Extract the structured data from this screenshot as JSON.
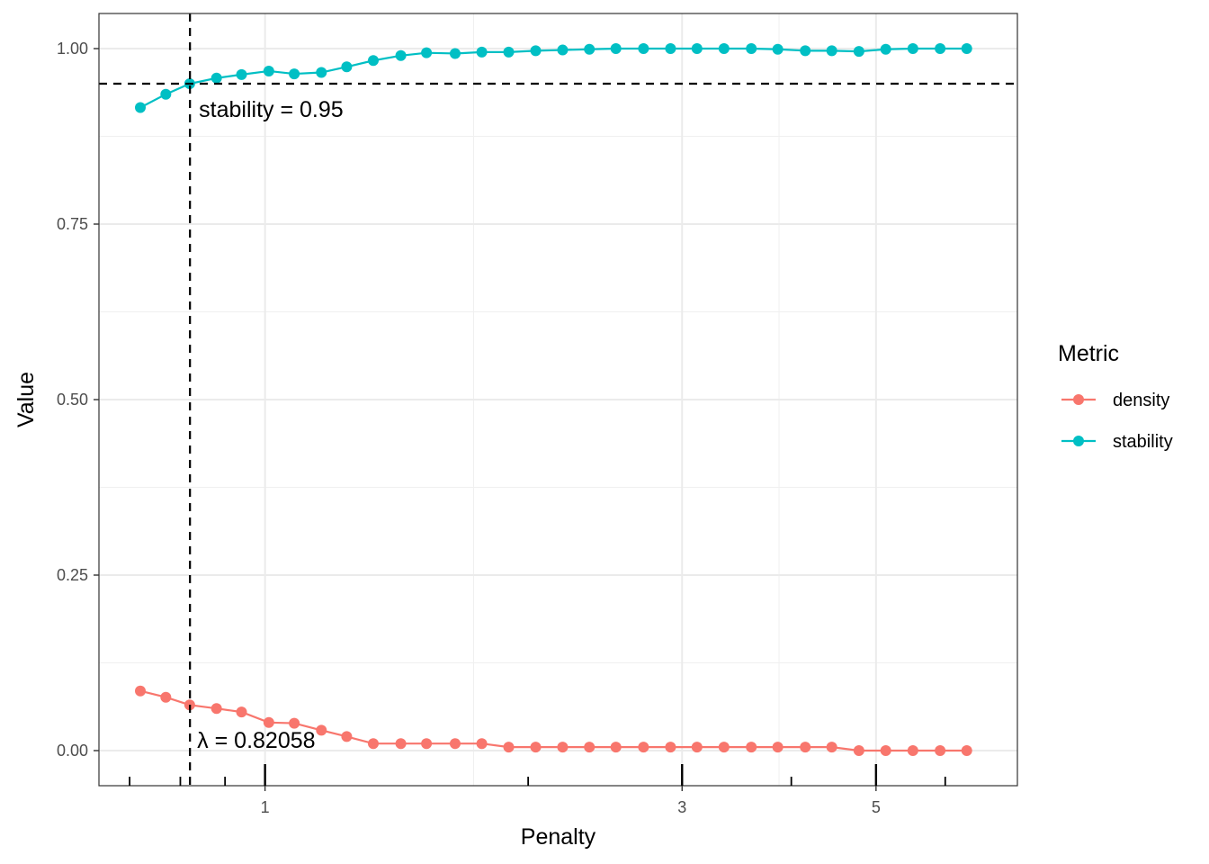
{
  "chart_data": {
    "type": "line",
    "title": "",
    "xlabel": "Penalty",
    "ylabel": "Value",
    "x_scale": "log",
    "xlim": [
      0.72,
      6.6
    ],
    "ylim": [
      -0.05,
      1.05
    ],
    "x_ticks": [
      {
        "value": 1,
        "label": "1"
      },
      {
        "value": 3,
        "label": "3"
      },
      {
        "value": 5,
        "label": "5"
      }
    ],
    "y_ticks": [
      {
        "value": 0.0,
        "label": "0.00"
      },
      {
        "value": 0.25,
        "label": "0.25"
      },
      {
        "value": 0.5,
        "label": "0.50"
      },
      {
        "value": 0.75,
        "label": "0.75"
      },
      {
        "value": 1.0,
        "label": "1.00"
      }
    ],
    "rug_major": [
      1,
      3,
      5
    ],
    "rug_minor": [
      0.7,
      0.8,
      0.9,
      2,
      4,
      6
    ],
    "grid": true,
    "legend": {
      "title": "Metric",
      "position": "right"
    },
    "x": [
      0.72,
      0.77,
      0.82,
      0.88,
      0.94,
      1.01,
      1.08,
      1.16,
      1.24,
      1.33,
      1.43,
      1.53,
      1.65,
      1.77,
      1.9,
      2.04,
      2.19,
      2.35,
      2.52,
      2.71,
      2.91,
      3.12,
      3.35,
      3.6,
      3.86,
      4.15,
      4.45,
      4.78,
      5.13,
      5.51,
      5.92,
      6.35
    ],
    "series": [
      {
        "name": "density",
        "color": "#F8766D",
        "values": [
          0.085,
          0.076,
          0.065,
          0.06,
          0.055,
          0.04,
          0.039,
          0.029,
          0.02,
          0.01,
          0.01,
          0.01,
          0.01,
          0.01,
          0.005,
          0.005,
          0.005,
          0.005,
          0.005,
          0.005,
          0.005,
          0.005,
          0.005,
          0.005,
          0.005,
          0.005,
          0.005,
          0.0,
          0.0,
          0.0,
          0.0,
          0.0
        ]
      },
      {
        "name": "stability",
        "color": "#00BFC4",
        "values": [
          0.916,
          0.935,
          0.95,
          0.958,
          0.963,
          0.968,
          0.964,
          0.966,
          0.974,
          0.983,
          0.99,
          0.994,
          0.993,
          0.995,
          0.995,
          0.997,
          0.998,
          0.999,
          1.0,
          1.0,
          1.0,
          1.0,
          1.0,
          1.0,
          0.999,
          0.997,
          0.997,
          0.996,
          0.999,
          1.0,
          1.0,
          1.0
        ]
      }
    ],
    "reference_lines": {
      "hline": {
        "value": 0.95,
        "label": "stability = 0.95"
      },
      "vline": {
        "value": 0.82058,
        "label": "λ = 0.82058"
      }
    }
  }
}
